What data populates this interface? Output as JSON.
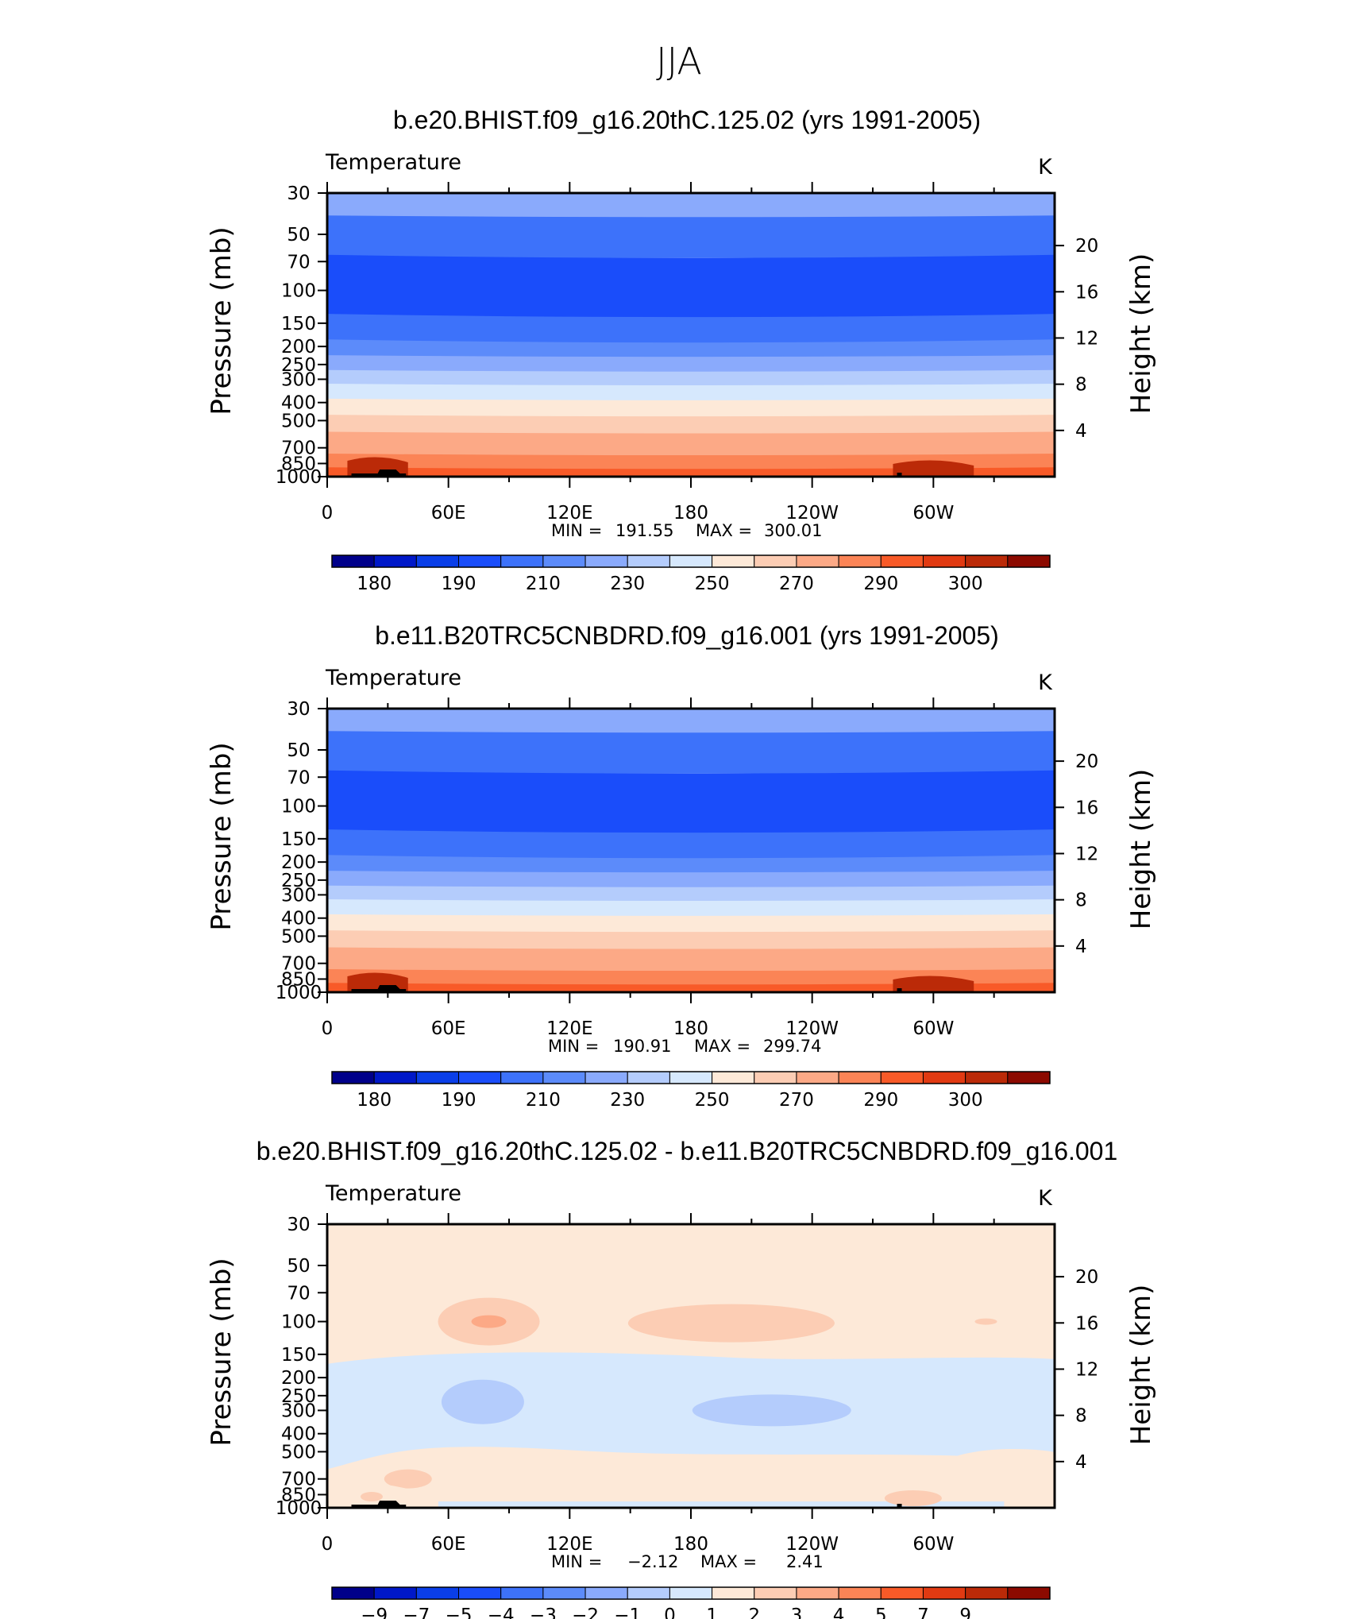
{
  "suptitle": "JJA",
  "colors": {
    "abs_levels": [
      "#00008a",
      "#0018c8",
      "#0a3ee8",
      "#1a4dfa",
      "#3d72fa",
      "#5c8bfa",
      "#8aaafc",
      "#b4ccfc",
      "#d6e8fd",
      "#fde9d8",
      "#fccdb4",
      "#fca986",
      "#fb8456",
      "#f85a28",
      "#e13a12",
      "#bb2a08",
      "#8c0a00"
    ],
    "diff_levels": [
      "#00008a",
      "#0018c8",
      "#0a3ee8",
      "#1a4dfa",
      "#3d72fa",
      "#5c8bfa",
      "#8aaafc",
      "#b4ccfc",
      "#d6e8fd",
      "#fde9d8",
      "#fccdb4",
      "#fca986",
      "#fb8456",
      "#f85a28",
      "#e13a12",
      "#bb2a08",
      "#8c0a00"
    ],
    "topography": "#000000"
  },
  "chart_data": [
    {
      "type": "heatmap",
      "title": "b.e20.BHIST.f09_g16.20thC.125.02 (yrs 1991-2005)",
      "variable_label": "Temperature",
      "units_label": "K",
      "ylabel": "Pressure (mb)",
      "ylabel_right": "Height (km)",
      "x_ticks": [
        "0",
        "60E",
        "120E",
        "180",
        "120W",
        "60W"
      ],
      "y_ticks": [
        "30",
        "50",
        "70",
        "100",
        "150",
        "200",
        "250",
        "300",
        "400",
        "500",
        "700",
        "850",
        "1000"
      ],
      "y_ticks_right": [
        "20",
        "16",
        "12",
        "8",
        "4"
      ],
      "ylim": [
        1000,
        30
      ],
      "bands_p": [
        30,
        40,
        65,
        135,
        185,
        225,
        270,
        320,
        385,
        470,
        580,
        760,
        900,
        1000
      ],
      "bands_level": [
        6,
        4,
        3,
        4,
        5,
        6,
        7,
        8,
        9,
        10,
        11,
        12,
        13
      ],
      "min_label": "MIN  =",
      "min_value": "191.55",
      "max_label": "MAX  =",
      "max_value": "300.01",
      "colorbar_labels": [
        "180",
        "190",
        "210",
        "230",
        "250",
        "270",
        "290",
        "300"
      ]
    },
    {
      "type": "heatmap",
      "title": "b.e11.B20TRC5CNBDRD.f09_g16.001 (yrs 1991-2005)",
      "variable_label": "Temperature",
      "units_label": "K",
      "ylabel": "Pressure (mb)",
      "ylabel_right": "Height (km)",
      "x_ticks": [
        "0",
        "60E",
        "120E",
        "180",
        "120W",
        "60W"
      ],
      "y_ticks": [
        "30",
        "50",
        "70",
        "100",
        "150",
        "200",
        "250",
        "300",
        "400",
        "500",
        "700",
        "850",
        "1000"
      ],
      "y_ticks_right": [
        "20",
        "16",
        "12",
        "8",
        "4"
      ],
      "ylim": [
        1000,
        30
      ],
      "bands_p": [
        30,
        40,
        65,
        135,
        185,
        225,
        270,
        320,
        385,
        470,
        580,
        760,
        900,
        1000
      ],
      "bands_level": [
        6,
        4,
        3,
        4,
        5,
        6,
        7,
        8,
        9,
        10,
        11,
        12,
        13
      ],
      "min_label": "MIN  =",
      "min_value": "190.91",
      "max_label": "MAX  =",
      "max_value": "299.74",
      "colorbar_labels": [
        "180",
        "190",
        "210",
        "230",
        "250",
        "270",
        "290",
        "300"
      ]
    },
    {
      "type": "heatmap",
      "title": "b.e20.BHIST.f09_g16.20thC.125.02 - b.e11.B20TRC5CNBDRD.f09_g16.001",
      "variable_label": "Temperature",
      "units_label": "K",
      "ylabel": "Pressure (mb)",
      "ylabel_right": "Height (km)",
      "x_ticks": [
        "0",
        "60E",
        "120E",
        "180",
        "120W",
        "60W"
      ],
      "y_ticks": [
        "30",
        "50",
        "70",
        "100",
        "150",
        "200",
        "250",
        "300",
        "400",
        "500",
        "700",
        "850",
        "1000"
      ],
      "y_ticks_right": [
        "20",
        "16",
        "12",
        "8",
        "4"
      ],
      "ylim": [
        1000,
        30
      ],
      "min_label": "MIN  =",
      "min_value": "−2.12",
      "max_label": "MAX  =",
      "max_value": "2.41",
      "colorbar_labels": [
        "−9",
        "−7",
        "−5",
        "−4",
        "−3",
        "−2",
        "−1",
        "0",
        "1",
        "2",
        "3",
        "4",
        "5",
        "7",
        "9"
      ]
    }
  ]
}
